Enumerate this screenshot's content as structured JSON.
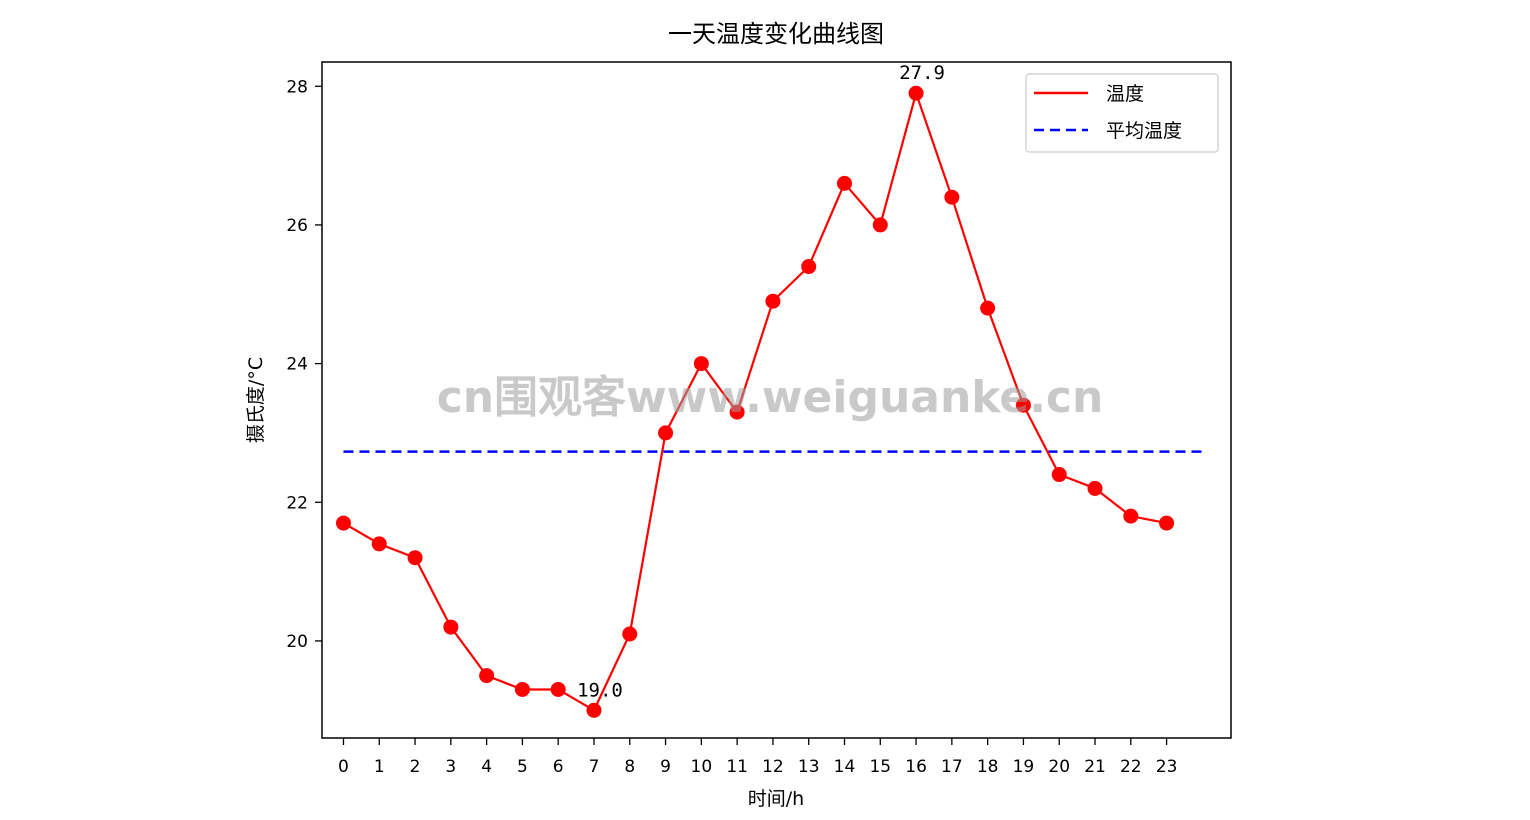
{
  "chart_data": {
    "type": "line",
    "title": "一天温度变化曲线图",
    "xlabel": "时间/h",
    "ylabel": "摄氏度/°C",
    "x": [
      0,
      1,
      2,
      3,
      4,
      5,
      6,
      7,
      8,
      9,
      10,
      11,
      12,
      13,
      14,
      15,
      16,
      17,
      18,
      19,
      20,
      21,
      22,
      23
    ],
    "x_tick_labels": [
      "0",
      "1",
      "2",
      "3",
      "4",
      "5",
      "6",
      "7",
      "8",
      "9",
      "10",
      "11",
      "12",
      "13",
      "14",
      "15",
      "16",
      "17",
      "18",
      "19",
      "20",
      "21",
      "22",
      "23"
    ],
    "y_ticks": [
      20,
      22,
      24,
      26,
      28
    ],
    "y_tick_labels": [
      "20",
      "22",
      "24",
      "26",
      "28"
    ],
    "xlim": [
      -0.6,
      24.8
    ],
    "ylim": [
      18.6,
      28.35
    ],
    "grid": false,
    "legend_position": "top-right",
    "series": [
      {
        "name": "温度",
        "style": "solid-line-with-markers",
        "color": "#ff0000",
        "values": [
          21.7,
          21.4,
          21.2,
          20.2,
          19.5,
          19.3,
          19.3,
          19.0,
          20.1,
          23.0,
          24.0,
          23.3,
          24.9,
          25.4,
          26.6,
          26.0,
          27.9,
          26.4,
          24.8,
          23.4,
          22.4,
          22.2,
          21.8,
          21.7
        ]
      },
      {
        "name": "平均温度",
        "style": "dashed-line",
        "color": "#0000ff",
        "value": 22.73,
        "x_range": [
          0,
          24
        ]
      }
    ],
    "annotations": [
      {
        "x": 7,
        "y": 19.0,
        "text": "19.0"
      },
      {
        "x": 16,
        "y": 27.9,
        "text": "27.9"
      }
    ]
  },
  "watermark": "cn围观客www.weiguanke.cn"
}
